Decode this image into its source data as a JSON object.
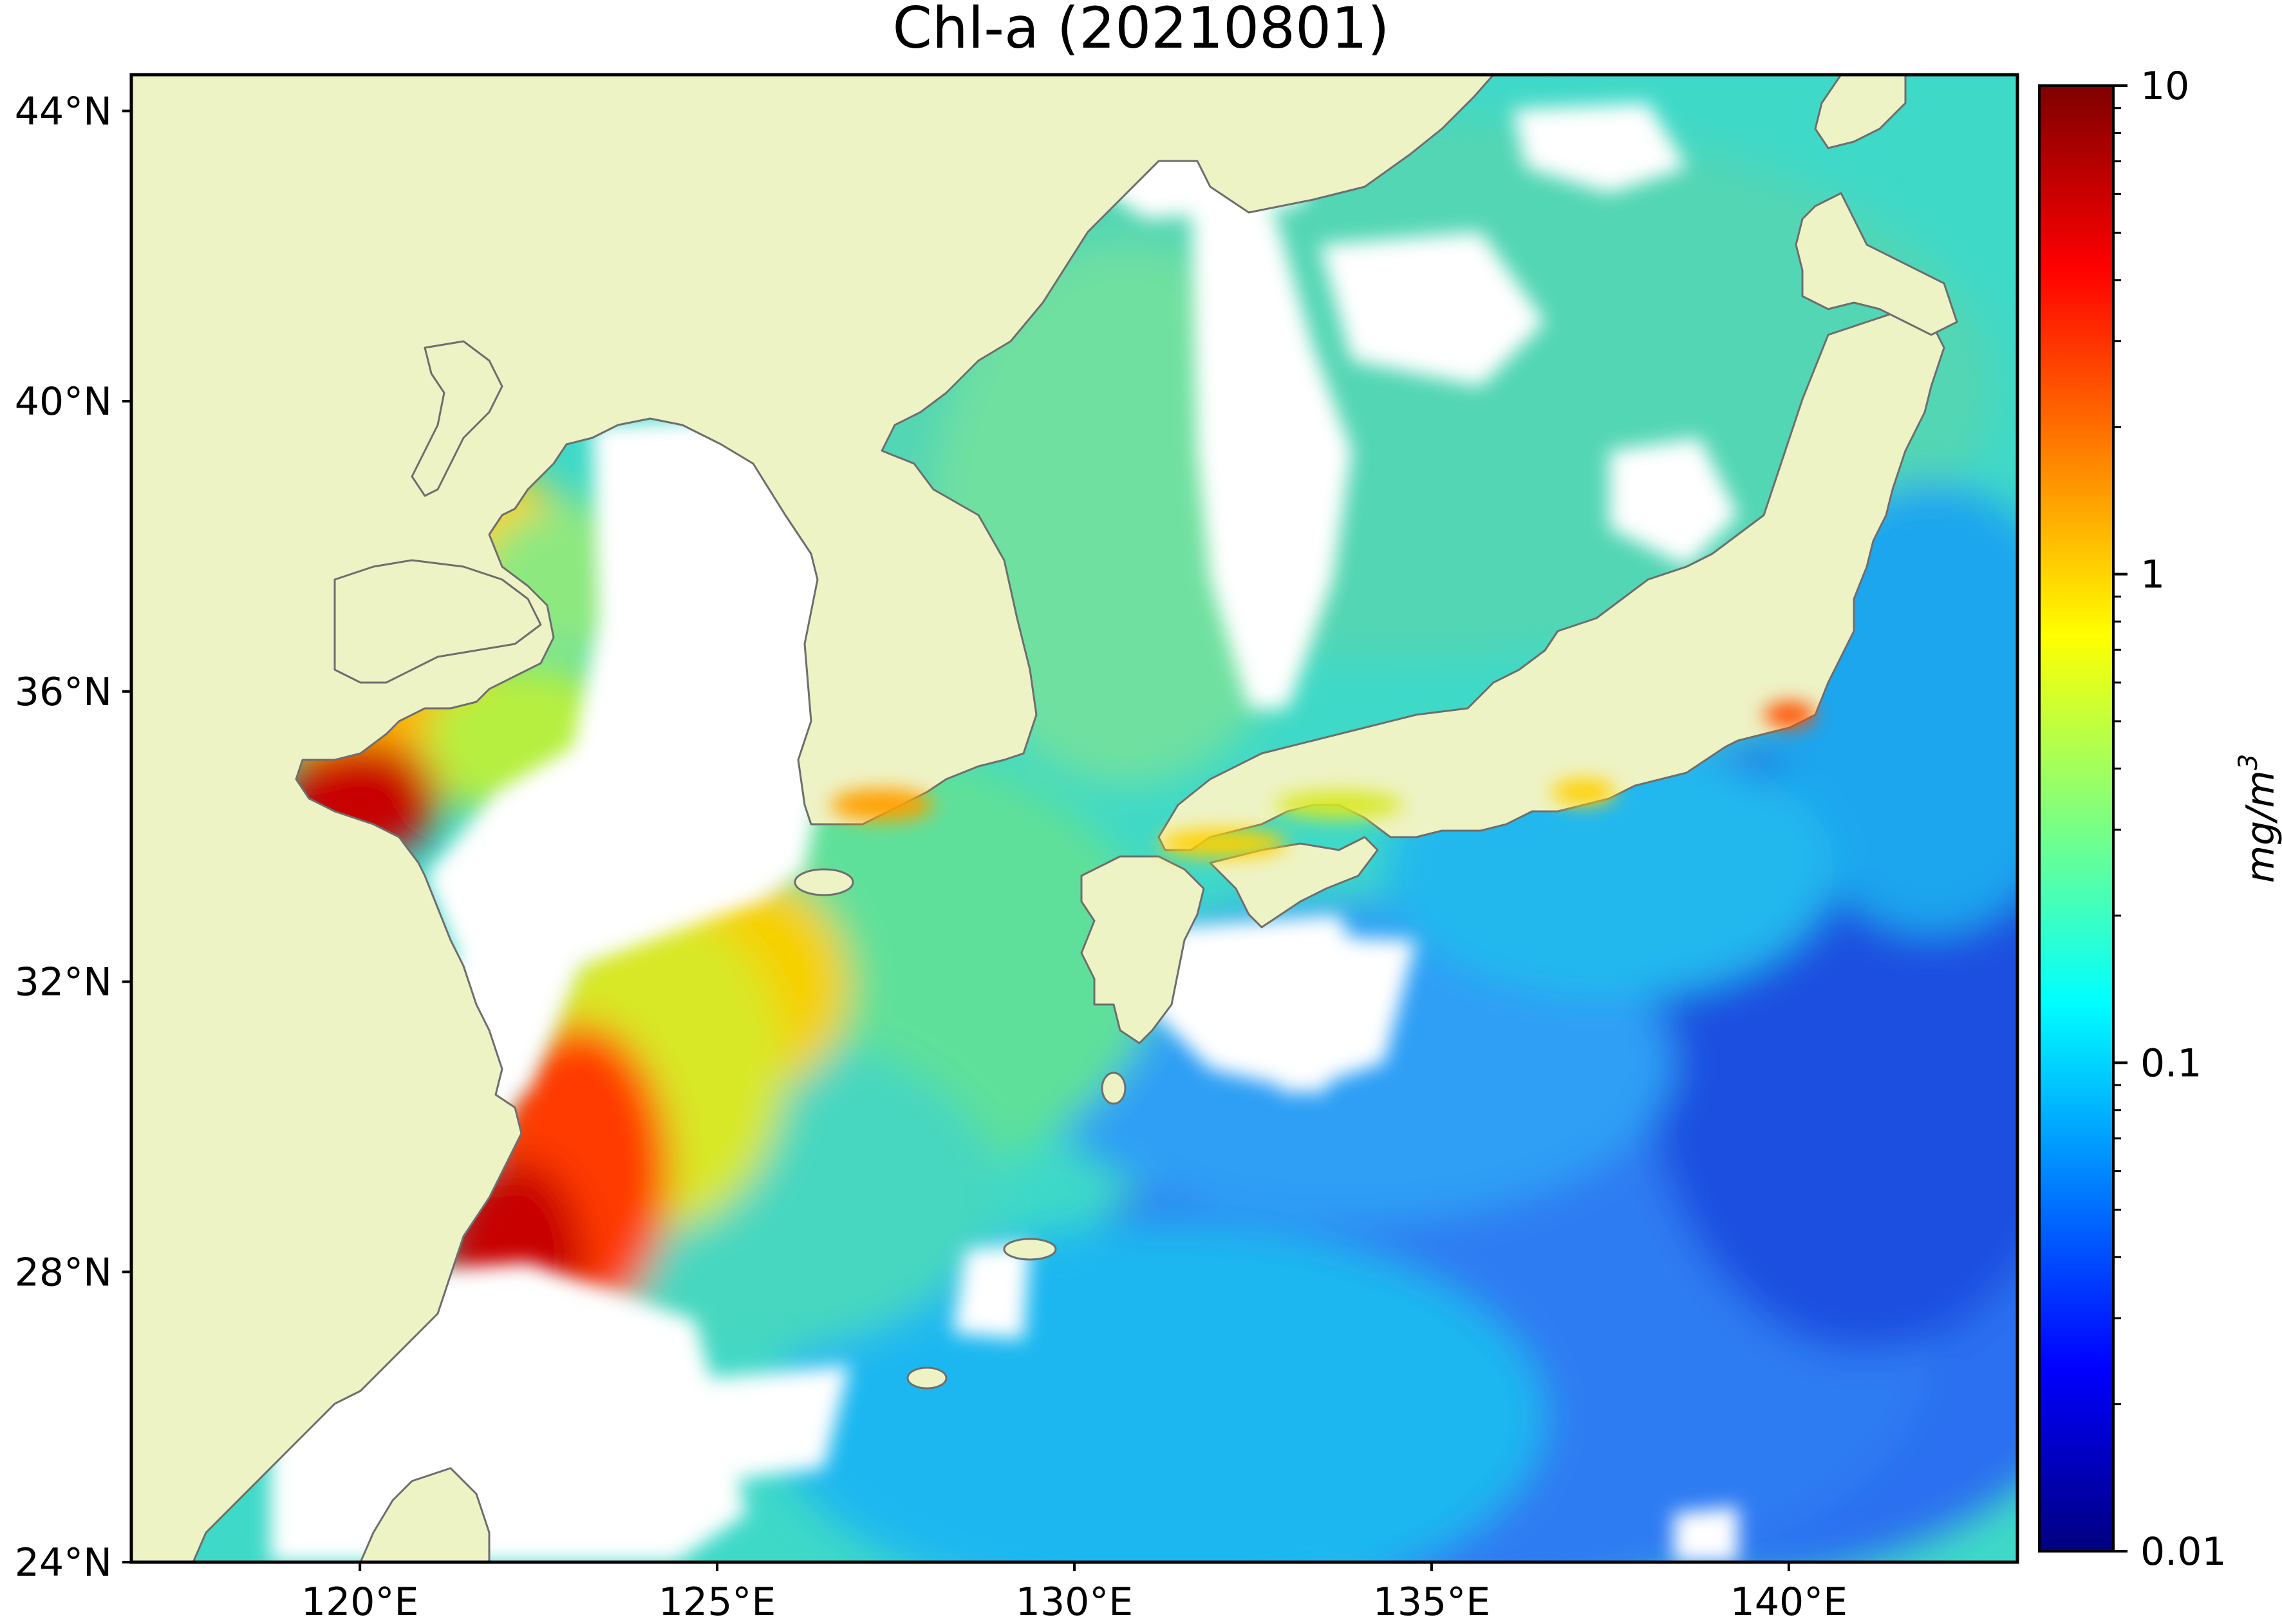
{
  "title": "Chl-a (20210801)",
  "map": {
    "lon_range": [
      116.8,
      143.2
    ],
    "lat_range": [
      24,
      44.5
    ],
    "lon_ticks": [
      {
        "value": 120,
        "label": "120°E"
      },
      {
        "value": 125,
        "label": "125°E"
      },
      {
        "value": 130,
        "label": "130°E"
      },
      {
        "value": 135,
        "label": "135°E"
      },
      {
        "value": 140,
        "label": "140°E"
      }
    ],
    "lat_ticks": [
      {
        "value": 24,
        "label": "24°N"
      },
      {
        "value": 28,
        "label": "28°N"
      },
      {
        "value": 32,
        "label": "32°N"
      },
      {
        "value": 36,
        "label": "36°N"
      },
      {
        "value": 40,
        "label": "40°N"
      },
      {
        "value": 44,
        "label": "44°N"
      }
    ],
    "land_color": "#eef3c6",
    "coast_color": "#6e6e6e"
  },
  "colorbar": {
    "scale": "log",
    "range": [
      0.01,
      10
    ],
    "ticks": [
      {
        "value": 10,
        "label": "10"
      },
      {
        "value": 1,
        "label": "1"
      },
      {
        "value": 0.1,
        "label": "0.1"
      },
      {
        "value": 0.01,
        "label": "0.01"
      }
    ],
    "unit_label": "mg/m",
    "unit_exponent": "3",
    "colormap": [
      "#00007f",
      "#0000ff",
      "#007fff",
      "#00ffff",
      "#7fff7f",
      "#ffff00",
      "#ff7f00",
      "#ff0000",
      "#7f0000"
    ]
  }
}
